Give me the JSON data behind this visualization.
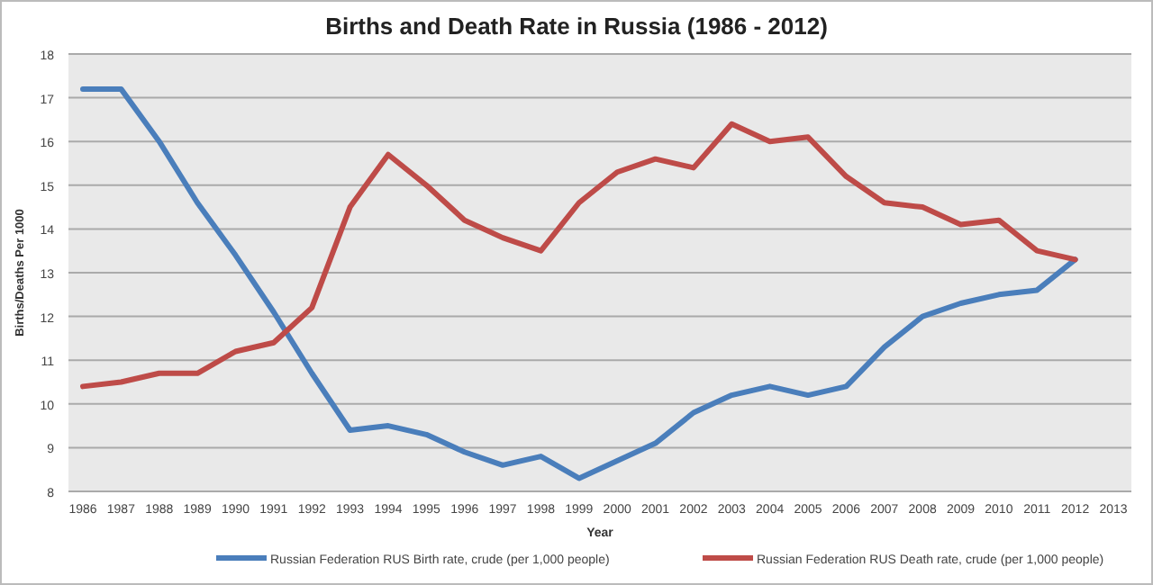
{
  "chart_data": {
    "type": "line",
    "title": "Births and Death Rate in Russia (1986 - 2012)",
    "xlabel": "Year",
    "ylabel": "Births/Deaths Per 1000",
    "categories": [
      "1986",
      "1987",
      "1988",
      "1989",
      "1990",
      "1991",
      "1992",
      "1993",
      "1994",
      "1995",
      "1996",
      "1997",
      "1998",
      "1999",
      "2000",
      "2001",
      "2002",
      "2003",
      "2004",
      "2005",
      "2006",
      "2007",
      "2008",
      "2009",
      "2010",
      "2011",
      "2012",
      "2013"
    ],
    "series": [
      {
        "name": "Russian Federation RUS Birth rate, crude (per 1,000 people)",
        "color": "#4a7ebb",
        "values": [
          17.2,
          17.2,
          16.0,
          14.6,
          13.4,
          12.1,
          10.7,
          9.4,
          9.5,
          9.3,
          8.9,
          8.6,
          8.8,
          8.3,
          8.7,
          9.1,
          9.8,
          10.2,
          10.4,
          10.2,
          10.4,
          11.3,
          12.0,
          12.3,
          12.5,
          12.6,
          13.3,
          null
        ]
      },
      {
        "name": "Russian Federation RUS Death rate, crude (per 1,000 people)",
        "color": "#be4b48",
        "values": [
          10.4,
          10.5,
          10.7,
          10.7,
          11.2,
          11.4,
          12.2,
          14.5,
          15.7,
          15.0,
          14.2,
          13.8,
          13.5,
          14.6,
          15.3,
          15.6,
          15.4,
          16.4,
          16.0,
          16.1,
          15.2,
          14.6,
          14.5,
          14.1,
          14.2,
          13.5,
          13.3,
          null
        ]
      }
    ],
    "ylim": [
      8,
      18
    ],
    "yticks": [
      8,
      9,
      10,
      11,
      12,
      13,
      14,
      15,
      16,
      17,
      18
    ],
    "grid": "y",
    "legend": "bottom",
    "line_style": "solid"
  }
}
